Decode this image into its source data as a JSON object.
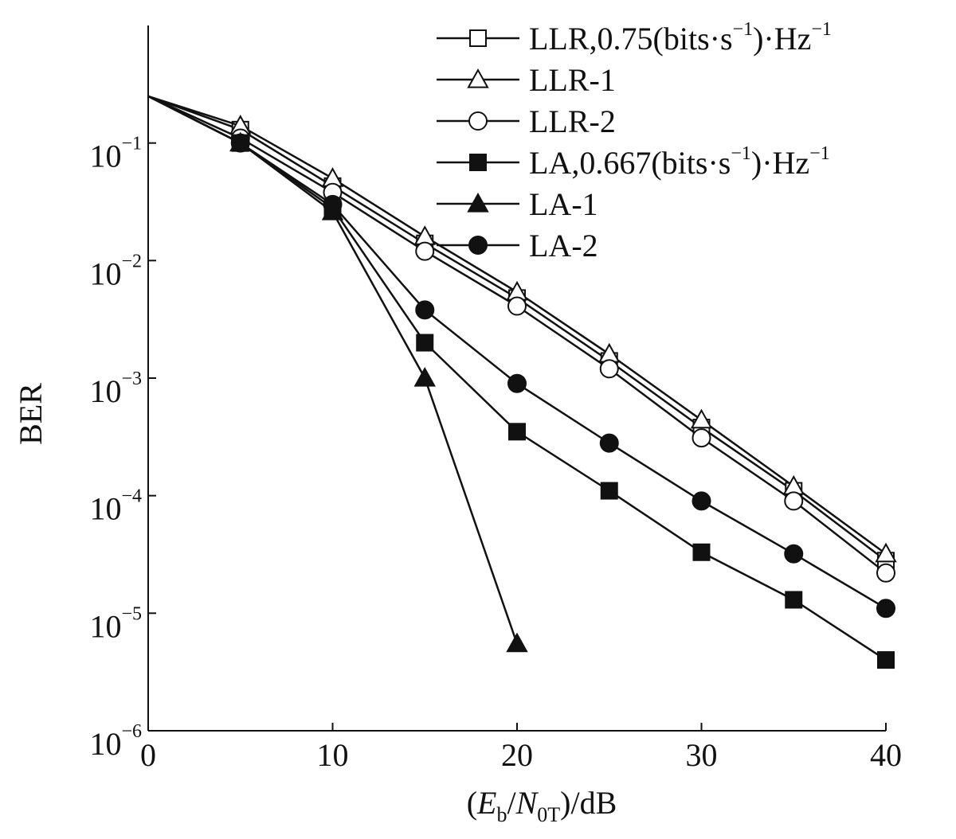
{
  "chart_data": {
    "type": "line",
    "xlabel": "(E_b / N_0T)/dB",
    "xlabel_parts": {
      "open": "(",
      "E": "E",
      "b": "b",
      "slash1": "/",
      "N": "N",
      "sub": "0T",
      "close": ")/dB"
    },
    "ylabel": "BER",
    "xlim": [
      0,
      40
    ],
    "ylim": [
      1e-06,
      1
    ],
    "yscale": "log",
    "grid": false,
    "legend_position": "top-right",
    "xticks": [
      0,
      10,
      20,
      30,
      40
    ],
    "xtick_labels": [
      "0",
      "10",
      "20",
      "30",
      "40"
    ],
    "yticks": [
      0.1,
      0.01,
      0.001,
      0.0001,
      1e-05,
      1e-06
    ],
    "ytick_labels": [
      {
        "base": "10",
        "exp": "−1"
      },
      {
        "base": "10",
        "exp": "−2"
      },
      {
        "base": "10",
        "exp": "−3"
      },
      {
        "base": "10",
        "exp": "−4"
      },
      {
        "base": "10",
        "exp": "−5"
      },
      {
        "base": "10",
        "exp": "−6"
      }
    ],
    "series": [
      {
        "name": "LLR,0.75(bits·s⁻¹)·Hz⁻¹",
        "label_main": "LLR,0.75",
        "label_unit": {
          "a": "(bits·s",
          "exp1": "−1",
          "b": ")·Hz",
          "exp2": "−1"
        },
        "marker": "square-open",
        "x": [
          0,
          5,
          10,
          15,
          20,
          25,
          30,
          35,
          40
        ],
        "y": [
          0.25,
          0.13,
          0.043,
          0.014,
          0.0048,
          0.0014,
          0.00038,
          0.00011,
          2.8e-05
        ]
      },
      {
        "name": "LLR-1",
        "marker": "triangle-open",
        "x": [
          0,
          5,
          10,
          15,
          20,
          25,
          30,
          35,
          40
        ],
        "y": [
          0.25,
          0.14,
          0.05,
          0.016,
          0.0054,
          0.0016,
          0.00044,
          0.00012,
          3.2e-05
        ]
      },
      {
        "name": "LLR-2",
        "marker": "circle-open",
        "x": [
          0,
          5,
          10,
          15,
          20,
          25,
          30,
          35,
          40
        ],
        "y": [
          0.25,
          0.11,
          0.038,
          0.012,
          0.0041,
          0.0012,
          0.00031,
          9e-05,
          2.2e-05
        ]
      },
      {
        "name": "LA,0.667(bits·s⁻¹)·Hz⁻¹",
        "label_main": "LA,0.667",
        "label_unit": {
          "a": "(bits·s",
          "exp1": "−1",
          "b": ")·Hz",
          "exp2": "−1"
        },
        "marker": "square-filled",
        "x": [
          0,
          5,
          10,
          15,
          20,
          25,
          30,
          35,
          40
        ],
        "y": [
          0.25,
          0.1,
          0.028,
          0.002,
          0.00035,
          0.00011,
          3.3e-05,
          1.3e-05,
          4e-06
        ]
      },
      {
        "name": "LA-1",
        "marker": "triangle-filled",
        "x": [
          0,
          5,
          10,
          15,
          20
        ],
        "y": [
          0.25,
          0.1,
          0.026,
          0.001,
          5.5e-06
        ]
      },
      {
        "name": "LA-2",
        "marker": "circle-filled",
        "x": [
          0,
          5,
          10,
          15,
          20,
          25,
          30,
          35,
          40
        ],
        "y": [
          0.25,
          0.1,
          0.03,
          0.0038,
          0.0009,
          0.00028,
          9e-05,
          3.2e-05,
          1.1e-05
        ]
      }
    ]
  }
}
